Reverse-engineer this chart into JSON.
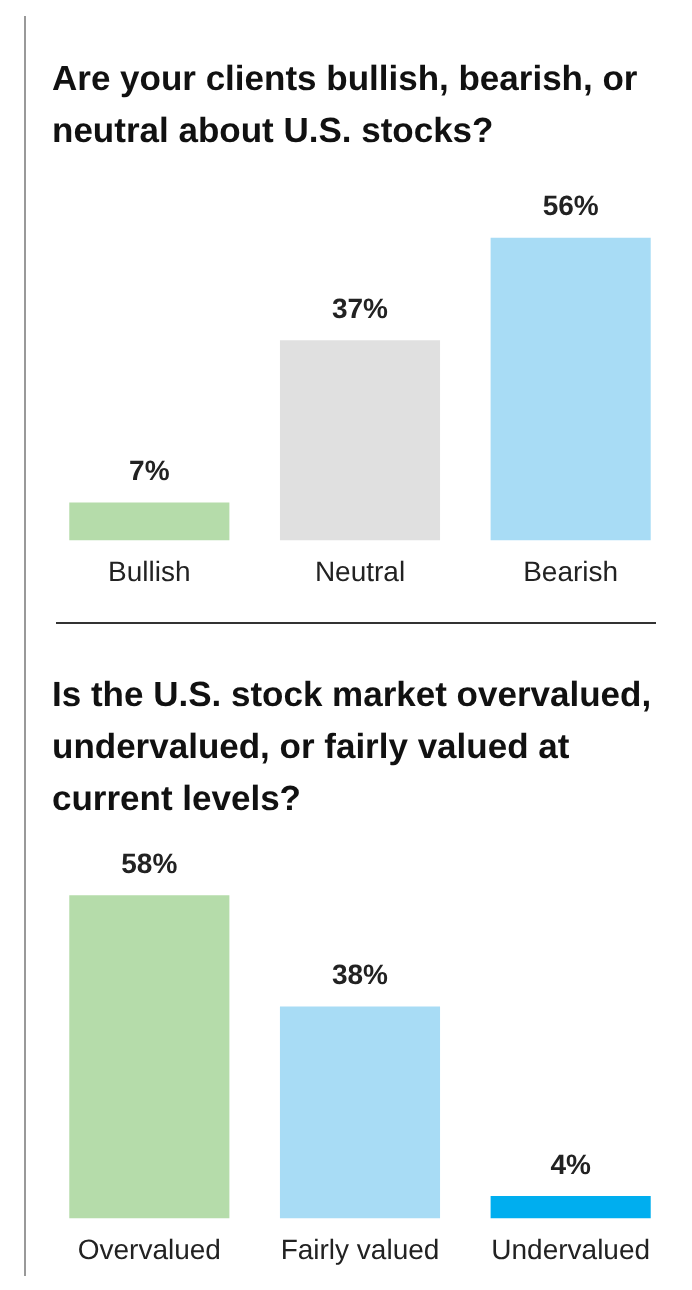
{
  "chart_data": [
    {
      "type": "bar",
      "title": "Are your clients bullish, bearish, or neutral about U.S. stocks?",
      "categories": [
        "Bullish",
        "Neutral",
        "Bearish"
      ],
      "values": [
        7,
        37,
        56
      ],
      "colors": [
        "#b5dcaa",
        "#e0e0e0",
        "#a8dcf5"
      ],
      "value_labels": [
        "7%",
        "37%",
        "56%"
      ],
      "grid": false,
      "legend": false,
      "tick_labels": "x"
    },
    {
      "type": "bar",
      "title": "Is the U.S. stock market overvalued, undervalued, or fairly valued at current levels?",
      "categories": [
        "Overvalued",
        "Fairly valued",
        "Undervalued"
      ],
      "values": [
        58,
        38,
        4
      ],
      "colors": [
        "#b5dcaa",
        "#a8dcf5",
        "#00aeef"
      ],
      "value_labels": [
        "58%",
        "38%",
        "4%"
      ],
      "grid": false,
      "legend": false,
      "tick_labels": "x"
    }
  ]
}
